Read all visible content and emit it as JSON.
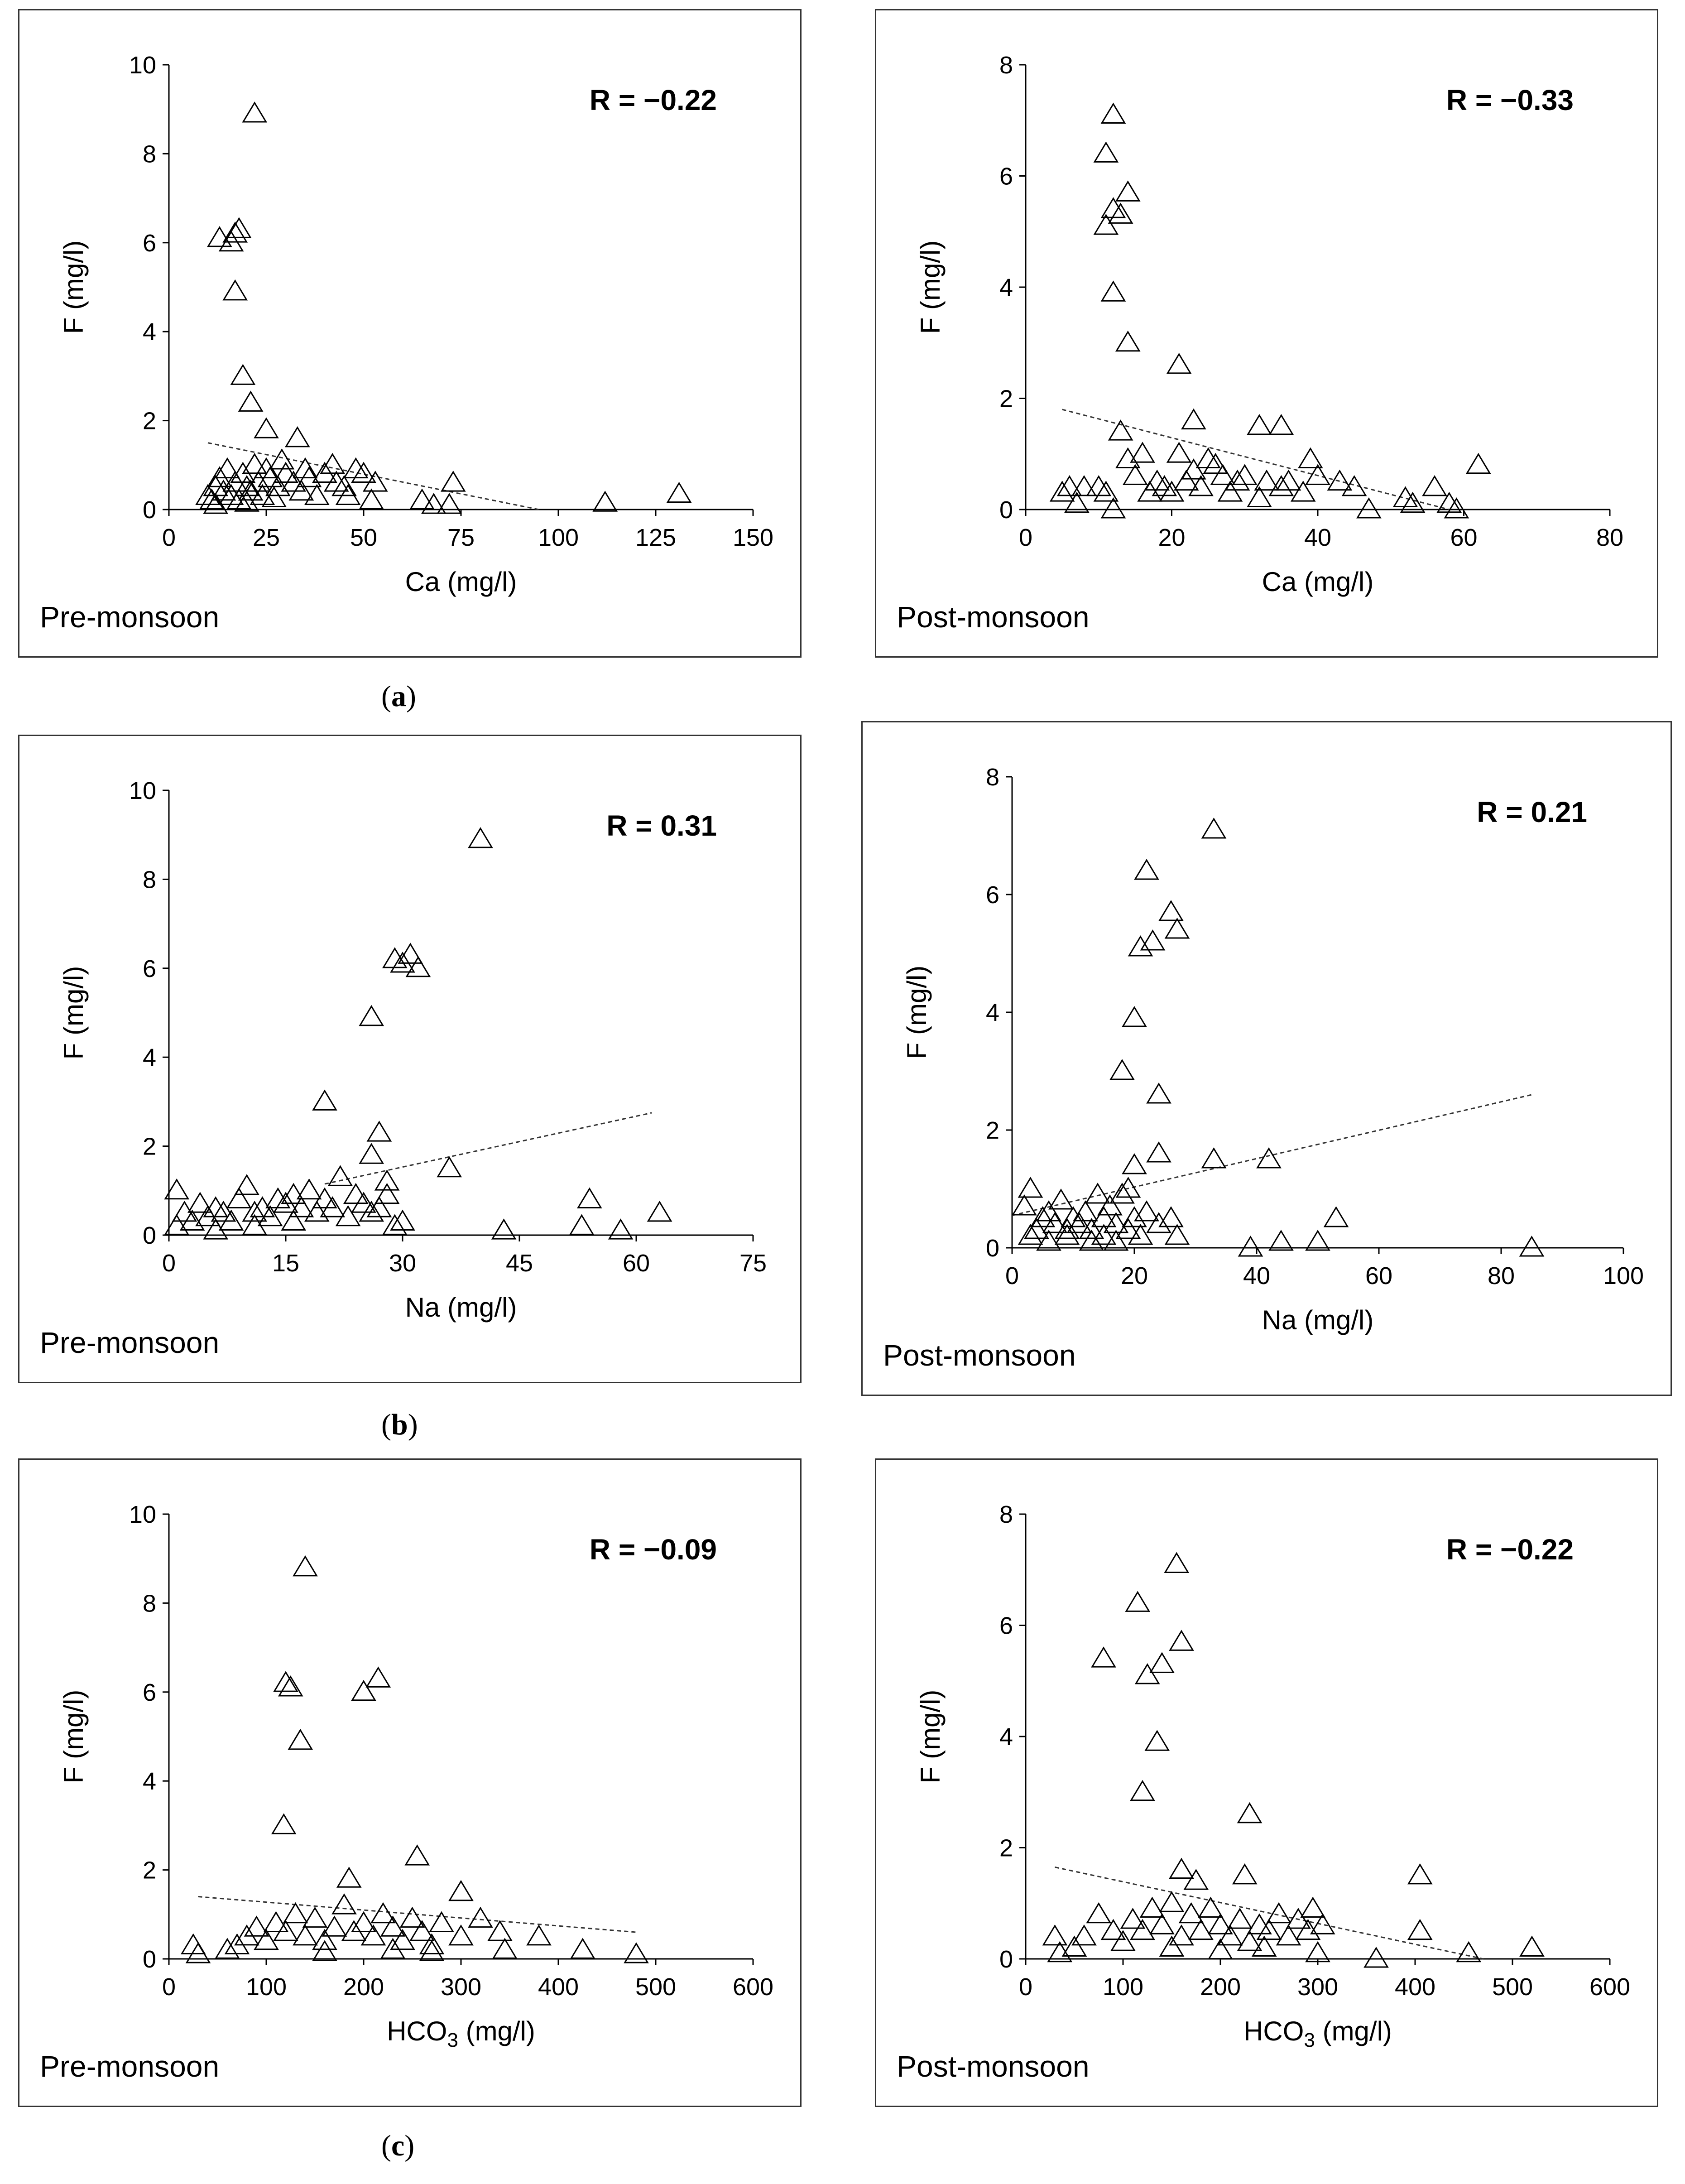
{
  "captions": {
    "a": {
      "open": "(",
      "letter": "a",
      "close": ")"
    },
    "b": {
      "open": "(",
      "letter": "b",
      "close": ")"
    },
    "c": {
      "open": "(",
      "letter": "c",
      "close": ")"
    }
  },
  "chart_data": [
    {
      "id": "a-pre",
      "type": "scatter",
      "season": "Pre-monsoon",
      "xlabel": "Ca (mg/l)",
      "ylabel": "F (mg/l)",
      "r_label": "R = −0.22",
      "xlim": [
        0,
        150
      ],
      "ylim": [
        0,
        10
      ],
      "xticks": [
        0,
        25,
        50,
        75,
        100,
        125,
        150
      ],
      "yticks": [
        0,
        2,
        4,
        6,
        8,
        10
      ],
      "trend": {
        "x": [
          10,
          95
        ],
        "y": [
          1.5,
          0.0
        ]
      },
      "points": [
        [
          22,
          8.9
        ],
        [
          13,
          6.1
        ],
        [
          16,
          6.0
        ],
        [
          17,
          6.2
        ],
        [
          18,
          6.3
        ],
        [
          17,
          4.9
        ],
        [
          19,
          3.0
        ],
        [
          21,
          2.4
        ],
        [
          25,
          1.8
        ],
        [
          33,
          1.6
        ],
        [
          10,
          0.3
        ],
        [
          11,
          0.2
        ],
        [
          12,
          0.5
        ],
        [
          13,
          0.7
        ],
        [
          14,
          0.4
        ],
        [
          15,
          0.9
        ],
        [
          16,
          0.3
        ],
        [
          17,
          0.6
        ],
        [
          18,
          0.2
        ],
        [
          19,
          0.8
        ],
        [
          20,
          0.5
        ],
        [
          21,
          0.4
        ],
        [
          22,
          1.0
        ],
        [
          23,
          0.6
        ],
        [
          24,
          0.3
        ],
        [
          25,
          0.9
        ],
        [
          26,
          0.7
        ],
        [
          28,
          0.5
        ],
        [
          29,
          1.1
        ],
        [
          30,
          0.8
        ],
        [
          32,
          0.6
        ],
        [
          34,
          0.4
        ],
        [
          35,
          0.9
        ],
        [
          36,
          0.7
        ],
        [
          38,
          0.3
        ],
        [
          40,
          0.8
        ],
        [
          42,
          1.0
        ],
        [
          43,
          0.6
        ],
        [
          45,
          0.5
        ],
        [
          46,
          0.3
        ],
        [
          48,
          0.9
        ],
        [
          50,
          0.8
        ],
        [
          52,
          0.2
        ],
        [
          53,
          0.6
        ],
        [
          65,
          0.2
        ],
        [
          68,
          0.1
        ],
        [
          72,
          0.1
        ],
        [
          73,
          0.6
        ],
        [
          112,
          0.15
        ],
        [
          131,
          0.35
        ],
        [
          12,
          0.1
        ],
        [
          20,
          0.15
        ],
        [
          27,
          0.25
        ]
      ]
    },
    {
      "id": "a-post",
      "type": "scatter",
      "season": "Post-monsoon",
      "xlabel": "Ca (mg/l)",
      "ylabel": "F (mg/l)",
      "r_label": "R = −0.33",
      "xlim": [
        0,
        80
      ],
      "ylim": [
        0,
        8
      ],
      "xticks": [
        0,
        20,
        40,
        60,
        80
      ],
      "yticks": [
        0,
        2,
        4,
        6,
        8
      ],
      "trend": {
        "x": [
          5,
          58
        ],
        "y": [
          1.8,
          0.0
        ]
      },
      "points": [
        [
          12,
          7.1
        ],
        [
          11,
          6.4
        ],
        [
          14,
          5.7
        ],
        [
          12,
          5.4
        ],
        [
          13,
          5.3
        ],
        [
          11,
          5.1
        ],
        [
          12,
          3.9
        ],
        [
          14,
          3.0
        ],
        [
          21,
          2.6
        ],
        [
          23,
          1.6
        ],
        [
          13,
          1.4
        ],
        [
          32,
          1.5
        ],
        [
          35,
          1.5
        ],
        [
          5,
          0.3
        ],
        [
          6,
          0.4
        ],
        [
          7,
          0.1
        ],
        [
          8,
          0.4
        ],
        [
          10,
          0.4
        ],
        [
          11,
          0.3
        ],
        [
          12,
          0.0
        ],
        [
          14,
          0.9
        ],
        [
          15,
          0.6
        ],
        [
          16,
          1.0
        ],
        [
          17,
          0.3
        ],
        [
          18,
          0.5
        ],
        [
          19,
          0.4
        ],
        [
          20,
          0.3
        ],
        [
          21,
          1.0
        ],
        [
          22,
          0.5
        ],
        [
          23,
          0.7
        ],
        [
          24,
          0.4
        ],
        [
          25,
          0.9
        ],
        [
          26,
          0.8
        ],
        [
          27,
          0.6
        ],
        [
          28,
          0.3
        ],
        [
          29,
          0.5
        ],
        [
          30,
          0.6
        ],
        [
          32,
          0.2
        ],
        [
          33,
          0.5
        ],
        [
          35,
          0.4
        ],
        [
          36,
          0.5
        ],
        [
          38,
          0.3
        ],
        [
          39,
          0.9
        ],
        [
          40,
          0.6
        ],
        [
          43,
          0.5
        ],
        [
          45,
          0.4
        ],
        [
          47,
          0.0
        ],
        [
          52,
          0.2
        ],
        [
          53,
          0.1
        ],
        [
          56,
          0.4
        ],
        [
          58,
          0.1
        ],
        [
          59,
          0.0
        ],
        [
          62,
          0.8
        ]
      ]
    },
    {
      "id": "b-pre",
      "type": "scatter",
      "season": "Pre-monsoon",
      "xlabel": "Na (mg/l)",
      "ylabel": "F (mg/l)",
      "r_label": "R = 0.31",
      "xlim": [
        0,
        75
      ],
      "ylim": [
        0,
        10
      ],
      "xticks": [
        0,
        15,
        30,
        45,
        60,
        75
      ],
      "yticks": [
        0,
        2,
        4,
        6,
        8,
        10
      ],
      "trend": {
        "x": [
          20,
          62
        ],
        "y": [
          1.15,
          2.75
        ]
      },
      "points": [
        [
          40,
          8.9
        ],
        [
          29,
          6.2
        ],
        [
          30,
          6.1
        ],
        [
          31,
          6.3
        ],
        [
          32,
          6.0
        ],
        [
          26,
          4.9
        ],
        [
          20,
          3.0
        ],
        [
          27,
          2.3
        ],
        [
          26,
          1.8
        ],
        [
          36,
          1.5
        ],
        [
          28,
          1.2
        ],
        [
          1,
          1.0
        ],
        [
          2,
          0.5
        ],
        [
          3,
          0.3
        ],
        [
          4,
          0.7
        ],
        [
          5,
          0.4
        ],
        [
          6,
          0.6
        ],
        [
          7,
          0.5
        ],
        [
          8,
          0.3
        ],
        [
          9,
          0.8
        ],
        [
          10,
          1.1
        ],
        [
          11,
          0.5
        ],
        [
          12,
          0.6
        ],
        [
          13,
          0.4
        ],
        [
          14,
          0.8
        ],
        [
          15,
          0.7
        ],
        [
          16,
          0.9
        ],
        [
          17,
          0.6
        ],
        [
          18,
          1.0
        ],
        [
          19,
          0.5
        ],
        [
          20,
          0.8
        ],
        [
          21,
          0.6
        ],
        [
          22,
          1.3
        ],
        [
          23,
          0.4
        ],
        [
          24,
          0.9
        ],
        [
          25,
          0.7
        ],
        [
          26,
          0.5
        ],
        [
          27,
          0.6
        ],
        [
          28,
          0.9
        ],
        [
          29,
          0.2
        ],
        [
          30,
          0.3
        ],
        [
          43,
          0.1
        ],
        [
          53,
          0.2
        ],
        [
          54,
          0.8
        ],
        [
          58,
          0.1
        ],
        [
          63,
          0.5
        ],
        [
          1,
          0.2
        ],
        [
          6,
          0.1
        ],
        [
          11,
          0.2
        ],
        [
          16,
          0.3
        ]
      ]
    },
    {
      "id": "b-post",
      "type": "scatter",
      "season": "Post-monsoon",
      "xlabel": "Na (mg/l)",
      "ylabel": "F (mg/l)",
      "r_label": "R = 0.21",
      "xlim": [
        0,
        100
      ],
      "ylim": [
        0,
        8
      ],
      "xticks": [
        0,
        20,
        40,
        60,
        80,
        100
      ],
      "yticks": [
        0,
        2,
        4,
        6,
        8
      ],
      "trend": {
        "x": [
          0,
          85
        ],
        "y": [
          0.55,
          2.6
        ]
      },
      "points": [
        [
          33,
          7.1
        ],
        [
          22,
          6.4
        ],
        [
          26,
          5.7
        ],
        [
          21,
          5.1
        ],
        [
          23,
          5.2
        ],
        [
          27,
          5.4
        ],
        [
          20,
          3.9
        ],
        [
          18,
          3.0
        ],
        [
          24,
          2.6
        ],
        [
          24,
          1.6
        ],
        [
          20,
          1.4
        ],
        [
          33,
          1.5
        ],
        [
          42,
          1.5
        ],
        [
          2,
          0.7
        ],
        [
          3,
          1.0
        ],
        [
          4,
          0.3
        ],
        [
          5,
          0.5
        ],
        [
          6,
          0.6
        ],
        [
          7,
          0.4
        ],
        [
          8,
          0.8
        ],
        [
          9,
          0.3
        ],
        [
          10,
          0.5
        ],
        [
          11,
          0.4
        ],
        [
          12,
          0.6
        ],
        [
          13,
          0.3
        ],
        [
          14,
          0.9
        ],
        [
          15,
          0.5
        ],
        [
          16,
          0.7
        ],
        [
          17,
          0.4
        ],
        [
          18,
          0.9
        ],
        [
          19,
          1.0
        ],
        [
          20,
          0.5
        ],
        [
          22,
          0.6
        ],
        [
          24,
          0.4
        ],
        [
          26,
          0.5
        ],
        [
          27,
          0.2
        ],
        [
          39,
          0.0
        ],
        [
          44,
          0.1
        ],
        [
          50,
          0.1
        ],
        [
          53,
          0.5
        ],
        [
          85,
          0.0
        ],
        [
          3,
          0.2
        ],
        [
          6,
          0.1
        ],
        [
          9,
          0.2
        ],
        [
          13,
          0.1
        ],
        [
          15,
          0.2
        ],
        [
          17,
          0.1
        ],
        [
          19,
          0.3
        ],
        [
          21,
          0.2
        ]
      ]
    },
    {
      "id": "c-pre",
      "type": "scatter",
      "season": "Pre-monsoon",
      "xlabel": "HCO3 (mg/l)",
      "xlabel_sub": "3",
      "ylabel": "F (mg/l)",
      "r_label": "R = −0.09",
      "xlim": [
        0,
        600
      ],
      "ylim": [
        0,
        10
      ],
      "xticks": [
        0,
        100,
        200,
        300,
        400,
        500,
        600
      ],
      "yticks": [
        0,
        2,
        4,
        6,
        8,
        10
      ],
      "trend": {
        "x": [
          30,
          480
        ],
        "y": [
          1.4,
          0.6
        ]
      },
      "points": [
        [
          140,
          8.8
        ],
        [
          120,
          6.2
        ],
        [
          125,
          6.1
        ],
        [
          200,
          6.0
        ],
        [
          215,
          6.3
        ],
        [
          135,
          4.9
        ],
        [
          118,
          3.0
        ],
        [
          255,
          2.3
        ],
        [
          185,
          1.8
        ],
        [
          300,
          1.5
        ],
        [
          25,
          0.3
        ],
        [
          30,
          0.1
        ],
        [
          60,
          0.2
        ],
        [
          70,
          0.3
        ],
        [
          80,
          0.5
        ],
        [
          90,
          0.7
        ],
        [
          100,
          0.4
        ],
        [
          110,
          0.8
        ],
        [
          120,
          0.6
        ],
        [
          130,
          1.0
        ],
        [
          140,
          0.5
        ],
        [
          150,
          0.9
        ],
        [
          160,
          0.4
        ],
        [
          170,
          0.7
        ],
        [
          180,
          1.2
        ],
        [
          190,
          0.6
        ],
        [
          200,
          0.8
        ],
        [
          210,
          0.5
        ],
        [
          220,
          1.0
        ],
        [
          230,
          0.7
        ],
        [
          240,
          0.4
        ],
        [
          250,
          0.9
        ],
        [
          260,
          0.6
        ],
        [
          270,
          0.3
        ],
        [
          280,
          0.8
        ],
        [
          300,
          0.5
        ],
        [
          320,
          0.9
        ],
        [
          340,
          0.6
        ],
        [
          345,
          0.2
        ],
        [
          380,
          0.5
        ],
        [
          425,
          0.2
        ],
        [
          480,
          0.1
        ],
        [
          230,
          0.2
        ],
        [
          160,
          0.15
        ],
        [
          270,
          0.15
        ]
      ]
    },
    {
      "id": "c-post",
      "type": "scatter",
      "season": "Post-monsoon",
      "xlabel": "HCO3 (mg/l)",
      "xlabel_sub": "3",
      "ylabel": "F (mg/l)",
      "r_label": "R = −0.22",
      "xlim": [
        0,
        600
      ],
      "ylim": [
        0,
        8
      ],
      "xticks": [
        0,
        100,
        200,
        300,
        400,
        500,
        600
      ],
      "yticks": [
        0,
        2,
        4,
        6,
        8
      ],
      "trend": {
        "x": [
          30,
          470
        ],
        "y": [
          1.65,
          0.0
        ]
      },
      "points": [
        [
          155,
          7.1
        ],
        [
          115,
          6.4
        ],
        [
          160,
          5.7
        ],
        [
          80,
          5.4
        ],
        [
          140,
          5.3
        ],
        [
          125,
          5.1
        ],
        [
          135,
          3.9
        ],
        [
          120,
          3.0
        ],
        [
          230,
          2.6
        ],
        [
          160,
          1.6
        ],
        [
          225,
          1.5
        ],
        [
          405,
          1.5
        ],
        [
          175,
          1.4
        ],
        [
          30,
          0.4
        ],
        [
          35,
          0.1
        ],
        [
          50,
          0.2
        ],
        [
          60,
          0.4
        ],
        [
          75,
          0.8
        ],
        [
          90,
          0.5
        ],
        [
          100,
          0.3
        ],
        [
          110,
          0.7
        ],
        [
          120,
          0.5
        ],
        [
          130,
          0.9
        ],
        [
          140,
          0.6
        ],
        [
          150,
          1.0
        ],
        [
          160,
          0.4
        ],
        [
          170,
          0.8
        ],
        [
          180,
          0.5
        ],
        [
          190,
          0.9
        ],
        [
          200,
          0.6
        ],
        [
          210,
          0.4
        ],
        [
          220,
          0.7
        ],
        [
          230,
          0.3
        ],
        [
          240,
          0.6
        ],
        [
          250,
          0.5
        ],
        [
          260,
          0.8
        ],
        [
          270,
          0.4
        ],
        [
          280,
          0.7
        ],
        [
          290,
          0.5
        ],
        [
          295,
          0.9
        ],
        [
          300,
          0.1
        ],
        [
          305,
          0.6
        ],
        [
          360,
          0.0
        ],
        [
          405,
          0.5
        ],
        [
          455,
          0.1
        ],
        [
          520,
          0.2
        ],
        [
          150,
          0.2
        ],
        [
          200,
          0.15
        ],
        [
          245,
          0.2
        ]
      ]
    }
  ]
}
